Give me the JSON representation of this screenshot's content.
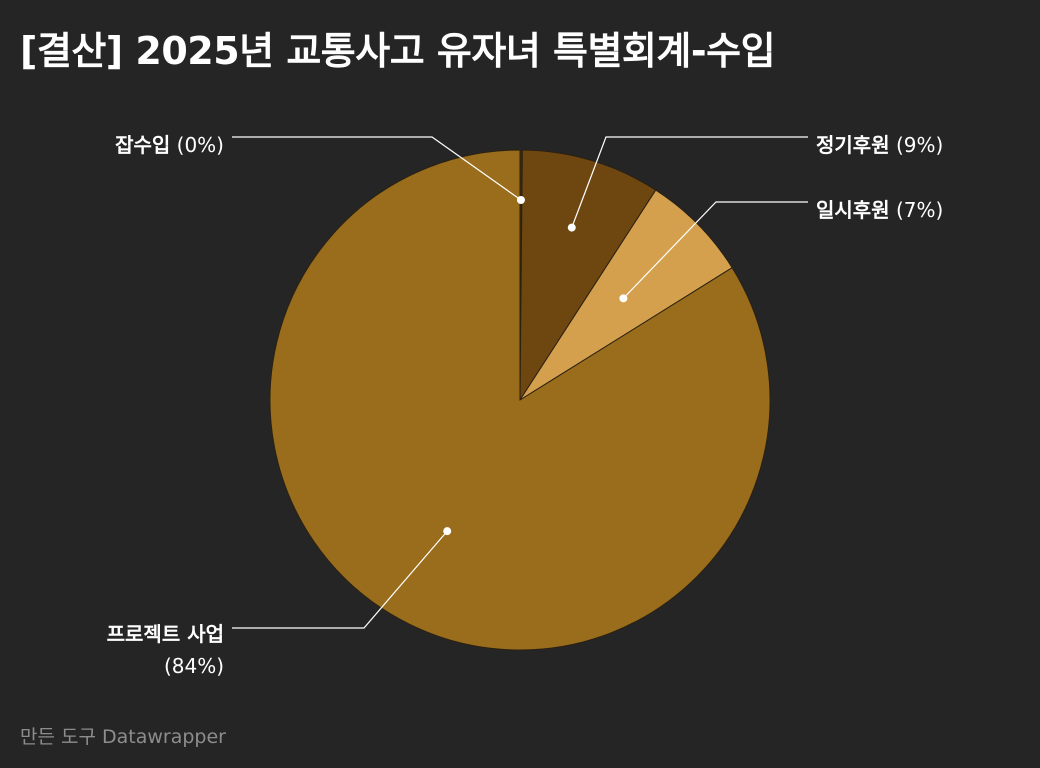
{
  "title": "[결산] 2025년 교통사고 유자녀 특별회계-수입",
  "footer": {
    "credit": "만든 도구 Datawrapper"
  },
  "chart_data": {
    "type": "pie",
    "title": "[결산] 2025년 교통사고 유자녀 특별회계-수입",
    "categories": [
      "잡수입",
      "정기후원",
      "일시후원",
      "프로젝트 사업"
    ],
    "values": [
      0.15,
      9,
      7,
      84
    ],
    "percent_labels": [
      "(0%)",
      "(9%)",
      "(7%)",
      "(84%)"
    ],
    "colors": [
      "#3d280e",
      "#6e4610",
      "#d5a04d",
      "#9a6d1d"
    ],
    "start_angle_deg": 0,
    "direction": "clockwise",
    "legend": "none"
  }
}
